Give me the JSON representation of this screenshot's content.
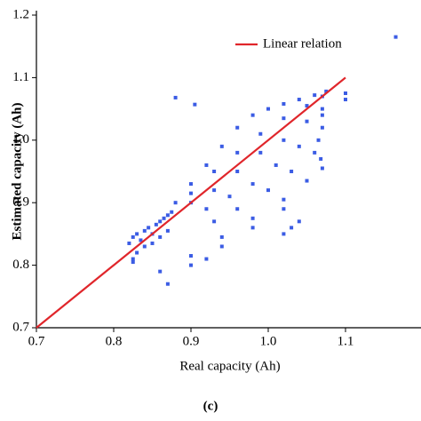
{
  "chart_data": {
    "type": "scatter",
    "xlabel": "Real capacity (Ah)",
    "ylabel": "Estimated capacity (Ah)",
    "caption": "(c)",
    "xlim": [
      0.7,
      1.2
    ],
    "ylim": [
      0.7,
      1.2
    ],
    "xticks": [
      {
        "value": 0.7,
        "label": "0.7"
      },
      {
        "value": 0.8,
        "label": "0.8"
      },
      {
        "value": 0.9,
        "label": "0.9"
      },
      {
        "value": 1.0,
        "label": "1.0"
      },
      {
        "value": 1.1,
        "label": "1.1"
      }
    ],
    "yticks": [
      {
        "value": 0.7,
        "label": "0.7"
      },
      {
        "value": 0.8,
        "label": "0.8"
      },
      {
        "value": 0.9,
        "label": "0.9"
      },
      {
        "value": 1.0,
        "label": "1.0"
      },
      {
        "value": 1.1,
        "label": "1.1"
      },
      {
        "value": 1.2,
        "label": "1.2"
      }
    ],
    "legend": "upper right",
    "series": [
      {
        "color": "#3b5ce4",
        "mark": "scatter",
        "x": [
          0.82,
          0.825,
          0.83,
          0.835,
          0.84,
          0.845,
          0.85,
          0.855,
          0.86,
          0.865,
          0.87,
          0.875,
          0.83,
          0.84,
          0.85,
          0.86,
          0.87,
          0.825,
          0.825,
          0.88,
          0.9,
          0.92,
          0.94,
          0.96,
          0.98,
          1.0,
          1.02,
          1.04,
          1.06,
          1.075,
          0.9,
          0.93,
          0.96,
          0.99,
          1.02,
          1.05,
          1.07,
          0.9,
          0.93,
          0.96,
          0.99,
          1.02,
          1.05,
          1.07,
          0.92,
          0.95,
          0.98,
          1.01,
          1.04,
          1.07,
          0.93,
          0.96,
          1.0,
          1.03,
          1.06,
          0.86,
          0.9,
          0.94,
          0.98,
          1.02,
          1.05,
          1.07,
          0.9,
          0.92,
          0.94,
          0.98,
          1.02,
          1.02,
          1.03,
          1.04,
          0.87,
          0.88,
          0.905,
          1.1,
          1.1,
          1.165,
          1.065,
          1.07,
          1.068
        ],
        "values": [
          0.835,
          0.845,
          0.85,
          0.84,
          0.855,
          0.86,
          0.85,
          0.865,
          0.87,
          0.875,
          0.88,
          0.885,
          0.82,
          0.83,
          0.835,
          0.845,
          0.855,
          0.81,
          0.805,
          0.9,
          0.93,
          0.96,
          0.99,
          1.02,
          1.04,
          1.05,
          1.058,
          1.065,
          1.072,
          1.078,
          0.915,
          0.95,
          0.98,
          1.01,
          1.035,
          1.055,
          1.07,
          0.9,
          0.92,
          0.95,
          0.98,
          1.0,
          1.03,
          1.05,
          0.89,
          0.91,
          0.93,
          0.96,
          0.99,
          1.02,
          0.87,
          0.89,
          0.92,
          0.95,
          0.98,
          0.79,
          0.815,
          0.845,
          0.875,
          0.905,
          0.935,
          0.955,
          0.8,
          0.81,
          0.83,
          0.86,
          0.89,
          0.85,
          0.86,
          0.87,
          0.77,
          1.068,
          1.057,
          1.075,
          1.065,
          1.165,
          1.0,
          1.04,
          0.97
        ]
      },
      {
        "name": "Linear relation",
        "color": "#e0262b",
        "mark": "line",
        "x": [
          0.7,
          1.1
        ],
        "values": [
          0.7,
          1.1
        ]
      }
    ]
  }
}
